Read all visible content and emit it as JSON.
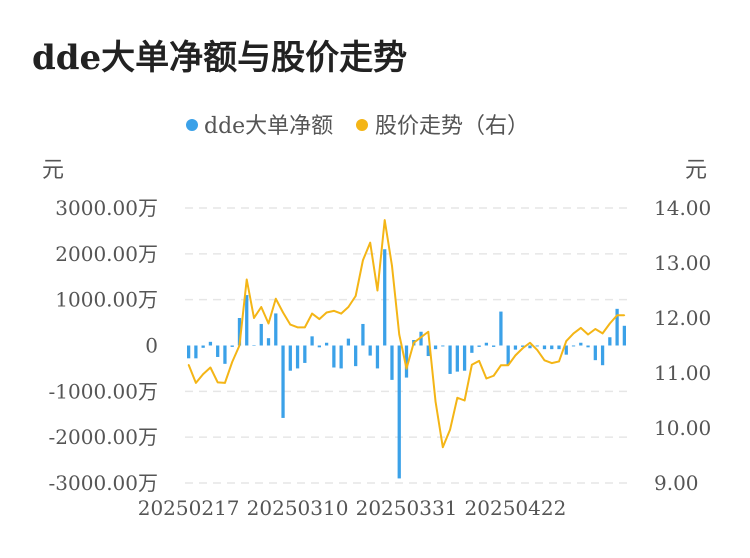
{
  "page_title": "dde大单净额与股价走势",
  "colors": {
    "bar": "#3ba1e8",
    "line": "#f4b516",
    "grid": "#e6e6e6",
    "text": "#555555"
  },
  "chart_data": {
    "type": "bar",
    "title": "dde大单净额与股价走势",
    "legend": {
      "position": "top-center"
    },
    "y_left": {
      "unit_label": "元",
      "range": [
        -3000,
        3000
      ],
      "ticks": [
        3000,
        2000,
        1000,
        0,
        -1000,
        -2000,
        -3000
      ],
      "tick_labels": [
        "3000.00万",
        "2000.00万",
        "1000.00万",
        "0",
        "-1000.00万",
        "-2000.00万",
        "-3000.00万"
      ]
    },
    "y_right": {
      "unit_label": "元",
      "range": [
        9,
        14
      ],
      "ticks": [
        14,
        13,
        12,
        11,
        10,
        9
      ],
      "tick_labels": [
        "14.00",
        "13.00",
        "12.00",
        "11.00",
        "10.00",
        "9.00"
      ]
    },
    "grid": true,
    "x_tick_labels": [
      {
        "index": 0,
        "label": "20250217"
      },
      {
        "index": 15,
        "label": "20250310"
      },
      {
        "index": 30,
        "label": "20250331"
      },
      {
        "index": 45,
        "label": "20250422"
      }
    ],
    "series": [
      {
        "name": "dde大单净额",
        "type": "bar",
        "axis": "left",
        "values": [
          -280,
          -280,
          -50,
          80,
          -250,
          -400,
          -30,
          600,
          1100,
          10,
          470,
          160,
          700,
          -1580,
          -550,
          -500,
          -380,
          200,
          -40,
          60,
          -480,
          -500,
          150,
          -450,
          470,
          -220,
          -500,
          2100,
          -750,
          -2900,
          -700,
          120,
          300,
          -230,
          -80,
          -20,
          -620,
          -570,
          -550,
          -160,
          -30,
          60,
          -30,
          740,
          -420,
          -90,
          -30,
          -60,
          -20,
          -80,
          -80,
          -80,
          -200,
          -20,
          60,
          -40,
          -320,
          -430,
          180,
          800,
          430
        ]
      },
      {
        "name": "股价走势（右）",
        "type": "line",
        "axis": "right",
        "values": [
          11.15,
          10.82,
          10.98,
          11.1,
          10.83,
          10.82,
          11.2,
          11.5,
          12.7,
          12.0,
          12.2,
          11.9,
          12.35,
          12.1,
          11.88,
          11.83,
          11.83,
          12.08,
          11.98,
          12.1,
          12.13,
          12.08,
          12.2,
          12.4,
          13.05,
          13.37,
          12.5,
          13.78,
          12.95,
          11.7,
          11.08,
          11.55,
          11.65,
          11.75,
          10.48,
          9.65,
          9.97,
          10.55,
          10.5,
          11.15,
          11.22,
          10.9,
          10.95,
          11.14,
          11.14,
          11.32,
          11.45,
          11.55,
          11.42,
          11.23,
          11.18,
          11.21,
          11.58,
          11.72,
          11.82,
          11.7,
          11.8,
          11.72,
          11.9,
          12.05,
          12.05
        ]
      }
    ]
  }
}
